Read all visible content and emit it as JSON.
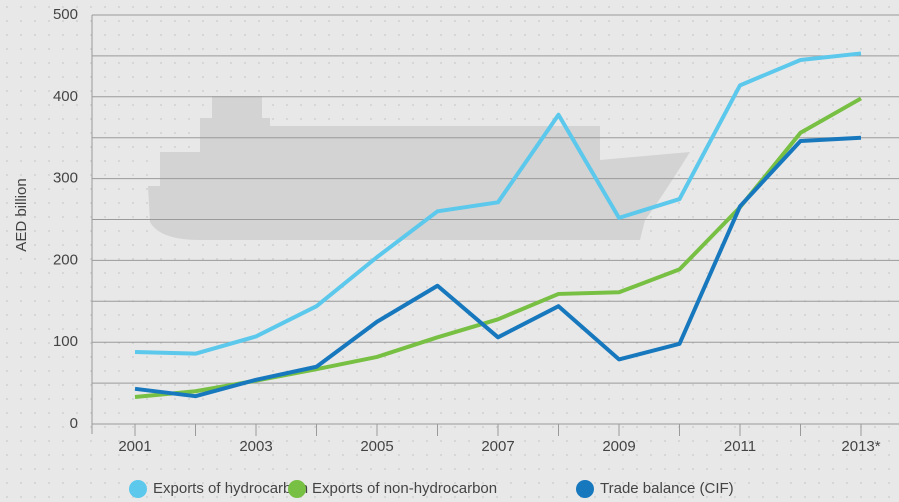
{
  "chart_data": {
    "type": "line",
    "y_label": "AED billion",
    "categories": [
      "2001",
      null,
      "2003",
      null,
      "2005",
      null,
      "2007",
      null,
      "2009",
      null,
      "2011",
      null,
      "2013*"
    ],
    "series": [
      {
        "name": "Exports of hydrocarbon",
        "color": "#5bc8ec",
        "values": [
          88,
          86,
          107,
          144,
          204,
          260,
          271,
          378,
          252,
          275,
          414,
          445,
          453
        ]
      },
      {
        "name": "Exports of non-hydrocarbon",
        "color": "#78c043",
        "values": [
          33,
          40,
          53,
          67,
          82,
          106,
          128,
          159,
          161,
          189,
          265,
          356,
          398
        ]
      },
      {
        "name": "Trade balance (CIF)",
        "color": "#1778be",
        "values": [
          43,
          34,
          54,
          70,
          125,
          169,
          106,
          144,
          79,
          98,
          266,
          346,
          350
        ]
      }
    ],
    "ylim": [
      0,
      500
    ],
    "yticks": [
      0,
      100,
      200,
      300,
      400,
      500
    ],
    "yminor": [
      50,
      150,
      250,
      350,
      450
    ],
    "grid": true
  }
}
